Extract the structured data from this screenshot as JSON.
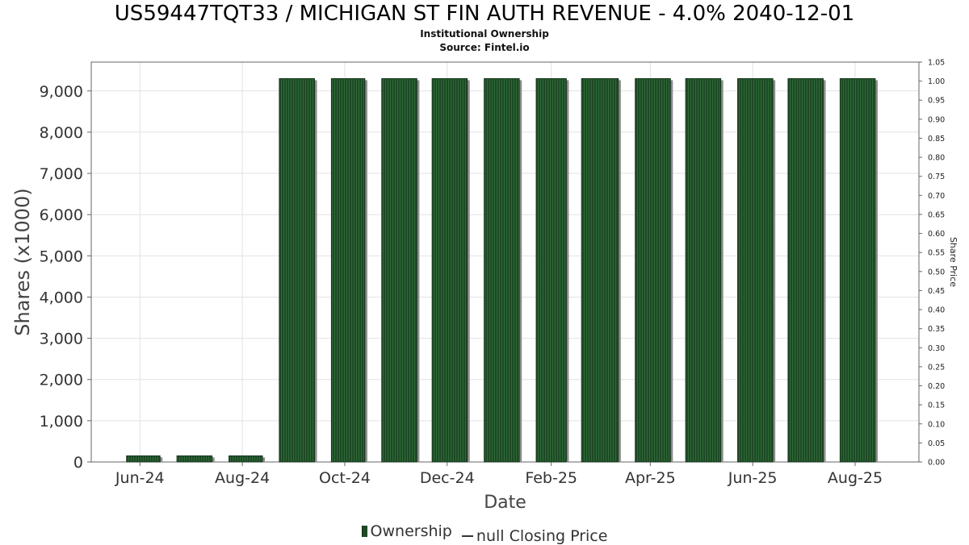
{
  "header": {
    "title": "US59447TQT33 / MICHIGAN ST FIN AUTH REVENUE - 4.0% 2040-12-01",
    "subtitle1": "Institutional Ownership",
    "subtitle2": "Source: Fintel.io"
  },
  "legend": {
    "ownership": "Ownership",
    "price": "null Closing Price"
  },
  "colors": {
    "bar": "#1d4a25",
    "bar_stripe": "#2f6a38",
    "bar_shadow": "#8c8c8c",
    "grid": "#e2e2e2",
    "axis": "#666666"
  },
  "chart_data": {
    "type": "bar",
    "xlabel": "Date",
    "ylabel": "Shares (x1000)",
    "y2label": "Share Price",
    "ylim": [
      0,
      9700
    ],
    "y2lim": [
      0,
      1.05
    ],
    "yticks": [
      "0",
      "1,000",
      "2,000",
      "3,000",
      "4,000",
      "5,000",
      "6,000",
      "7,000",
      "8,000",
      "9,000"
    ],
    "yticks_values": [
      0,
      1000,
      2000,
      3000,
      4000,
      5000,
      6000,
      7000,
      8000,
      9000
    ],
    "y2ticks": [
      "0.00",
      "0.05",
      "0.10",
      "0.15",
      "0.20",
      "0.25",
      "0.30",
      "0.35",
      "0.40",
      "0.45",
      "0.50",
      "0.55",
      "0.60",
      "0.65",
      "0.70",
      "0.75",
      "0.80",
      "0.85",
      "0.90",
      "0.95",
      "1.00",
      "1.05"
    ],
    "y2ticks_values": [
      0,
      0.05,
      0.1,
      0.15,
      0.2,
      0.25,
      0.3,
      0.35,
      0.4,
      0.45,
      0.5,
      0.55,
      0.6,
      0.65,
      0.7,
      0.75,
      0.8,
      0.85,
      0.9,
      0.95,
      1.0,
      1.05
    ],
    "xlim": [
      "2024-05-03",
      "2025-09-08"
    ],
    "xticks": [
      {
        "label": "Jun-24",
        "date": "2024-06-01"
      },
      {
        "label": "Aug-24",
        "date": "2024-08-01"
      },
      {
        "label": "Oct-24",
        "date": "2024-10-01"
      },
      {
        "label": "Dec-24",
        "date": "2024-12-01"
      },
      {
        "label": "Feb-25",
        "date": "2025-02-01"
      },
      {
        "label": "Apr-25",
        "date": "2025-04-01"
      },
      {
        "label": "Jun-25",
        "date": "2025-06-01"
      },
      {
        "label": "Aug-25",
        "date": "2025-08-01"
      }
    ],
    "series": [
      {
        "name": "Ownership",
        "points": [
          {
            "start": "2024-05-24",
            "end": "2024-06-13",
            "value": 150
          },
          {
            "start": "2024-06-23",
            "end": "2024-07-14",
            "value": 150
          },
          {
            "start": "2024-07-24",
            "end": "2024-08-13",
            "value": 150
          },
          {
            "start": "2024-08-23",
            "end": "2024-09-13",
            "value": 9300
          },
          {
            "start": "2024-09-23",
            "end": "2024-10-13",
            "value": 9300
          },
          {
            "start": "2024-10-23",
            "end": "2024-11-13",
            "value": 9300
          },
          {
            "start": "2024-11-22",
            "end": "2024-12-13",
            "value": 9300
          },
          {
            "start": "2024-12-23",
            "end": "2025-01-13",
            "value": 9300
          },
          {
            "start": "2025-01-23",
            "end": "2025-02-10",
            "value": 9300
          },
          {
            "start": "2025-02-19",
            "end": "2025-03-13",
            "value": 9300
          },
          {
            "start": "2025-03-23",
            "end": "2025-04-13",
            "value": 9300
          },
          {
            "start": "2025-04-22",
            "end": "2025-05-13",
            "value": 9300
          },
          {
            "start": "2025-05-23",
            "end": "2025-06-13",
            "value": 9300
          },
          {
            "start": "2025-06-22",
            "end": "2025-07-13",
            "value": 9300
          },
          {
            "start": "2025-07-23",
            "end": "2025-08-13",
            "value": 9300
          }
        ]
      }
    ],
    "grid": true,
    "legend_position": "bottom-center"
  }
}
